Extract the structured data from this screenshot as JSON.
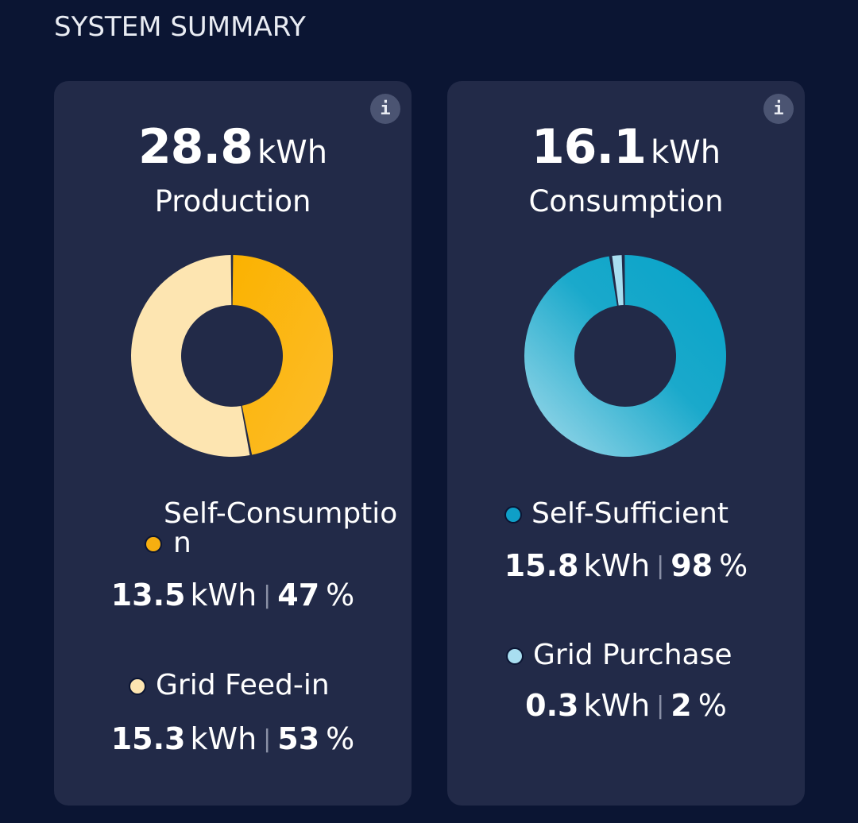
{
  "section_title": "SYSTEM SUMMARY",
  "info_glyph": "i",
  "production": {
    "total_value": "28.8",
    "total_unit": "kWh",
    "label": "Production",
    "donut_fractions": [
      0.47,
      0.53
    ],
    "colors": [
      "#fbb514",
      "#fde5b1"
    ],
    "items": [
      {
        "name": "Self-Consumptio",
        "name_wrap": "n",
        "value": "13.5",
        "unit": "kWh",
        "percent": "47",
        "percent_unit": "%",
        "dot_color": "#f7af10"
      },
      {
        "name": "Grid Feed-in",
        "value": "15.3",
        "unit": "kWh",
        "percent": "53",
        "percent_unit": "%",
        "dot_color": "#fde5b1"
      }
    ]
  },
  "consumption": {
    "total_value": "16.1",
    "total_unit": "kWh",
    "label": "Consumption",
    "donut_fractions": [
      0.98,
      0.02
    ],
    "colors": [
      "#0ba2c6",
      "#a9def0"
    ],
    "items": [
      {
        "name": "Self-Sufficient",
        "value": "15.8",
        "unit": "kWh",
        "percent": "98",
        "percent_unit": "%",
        "dot_color": "#0f9fc7"
      },
      {
        "name": "Grid Purchase",
        "value": "0.3",
        "unit": "kWh",
        "percent": "2",
        "percent_unit": "%",
        "dot_color": "#a9def0"
      }
    ]
  }
}
